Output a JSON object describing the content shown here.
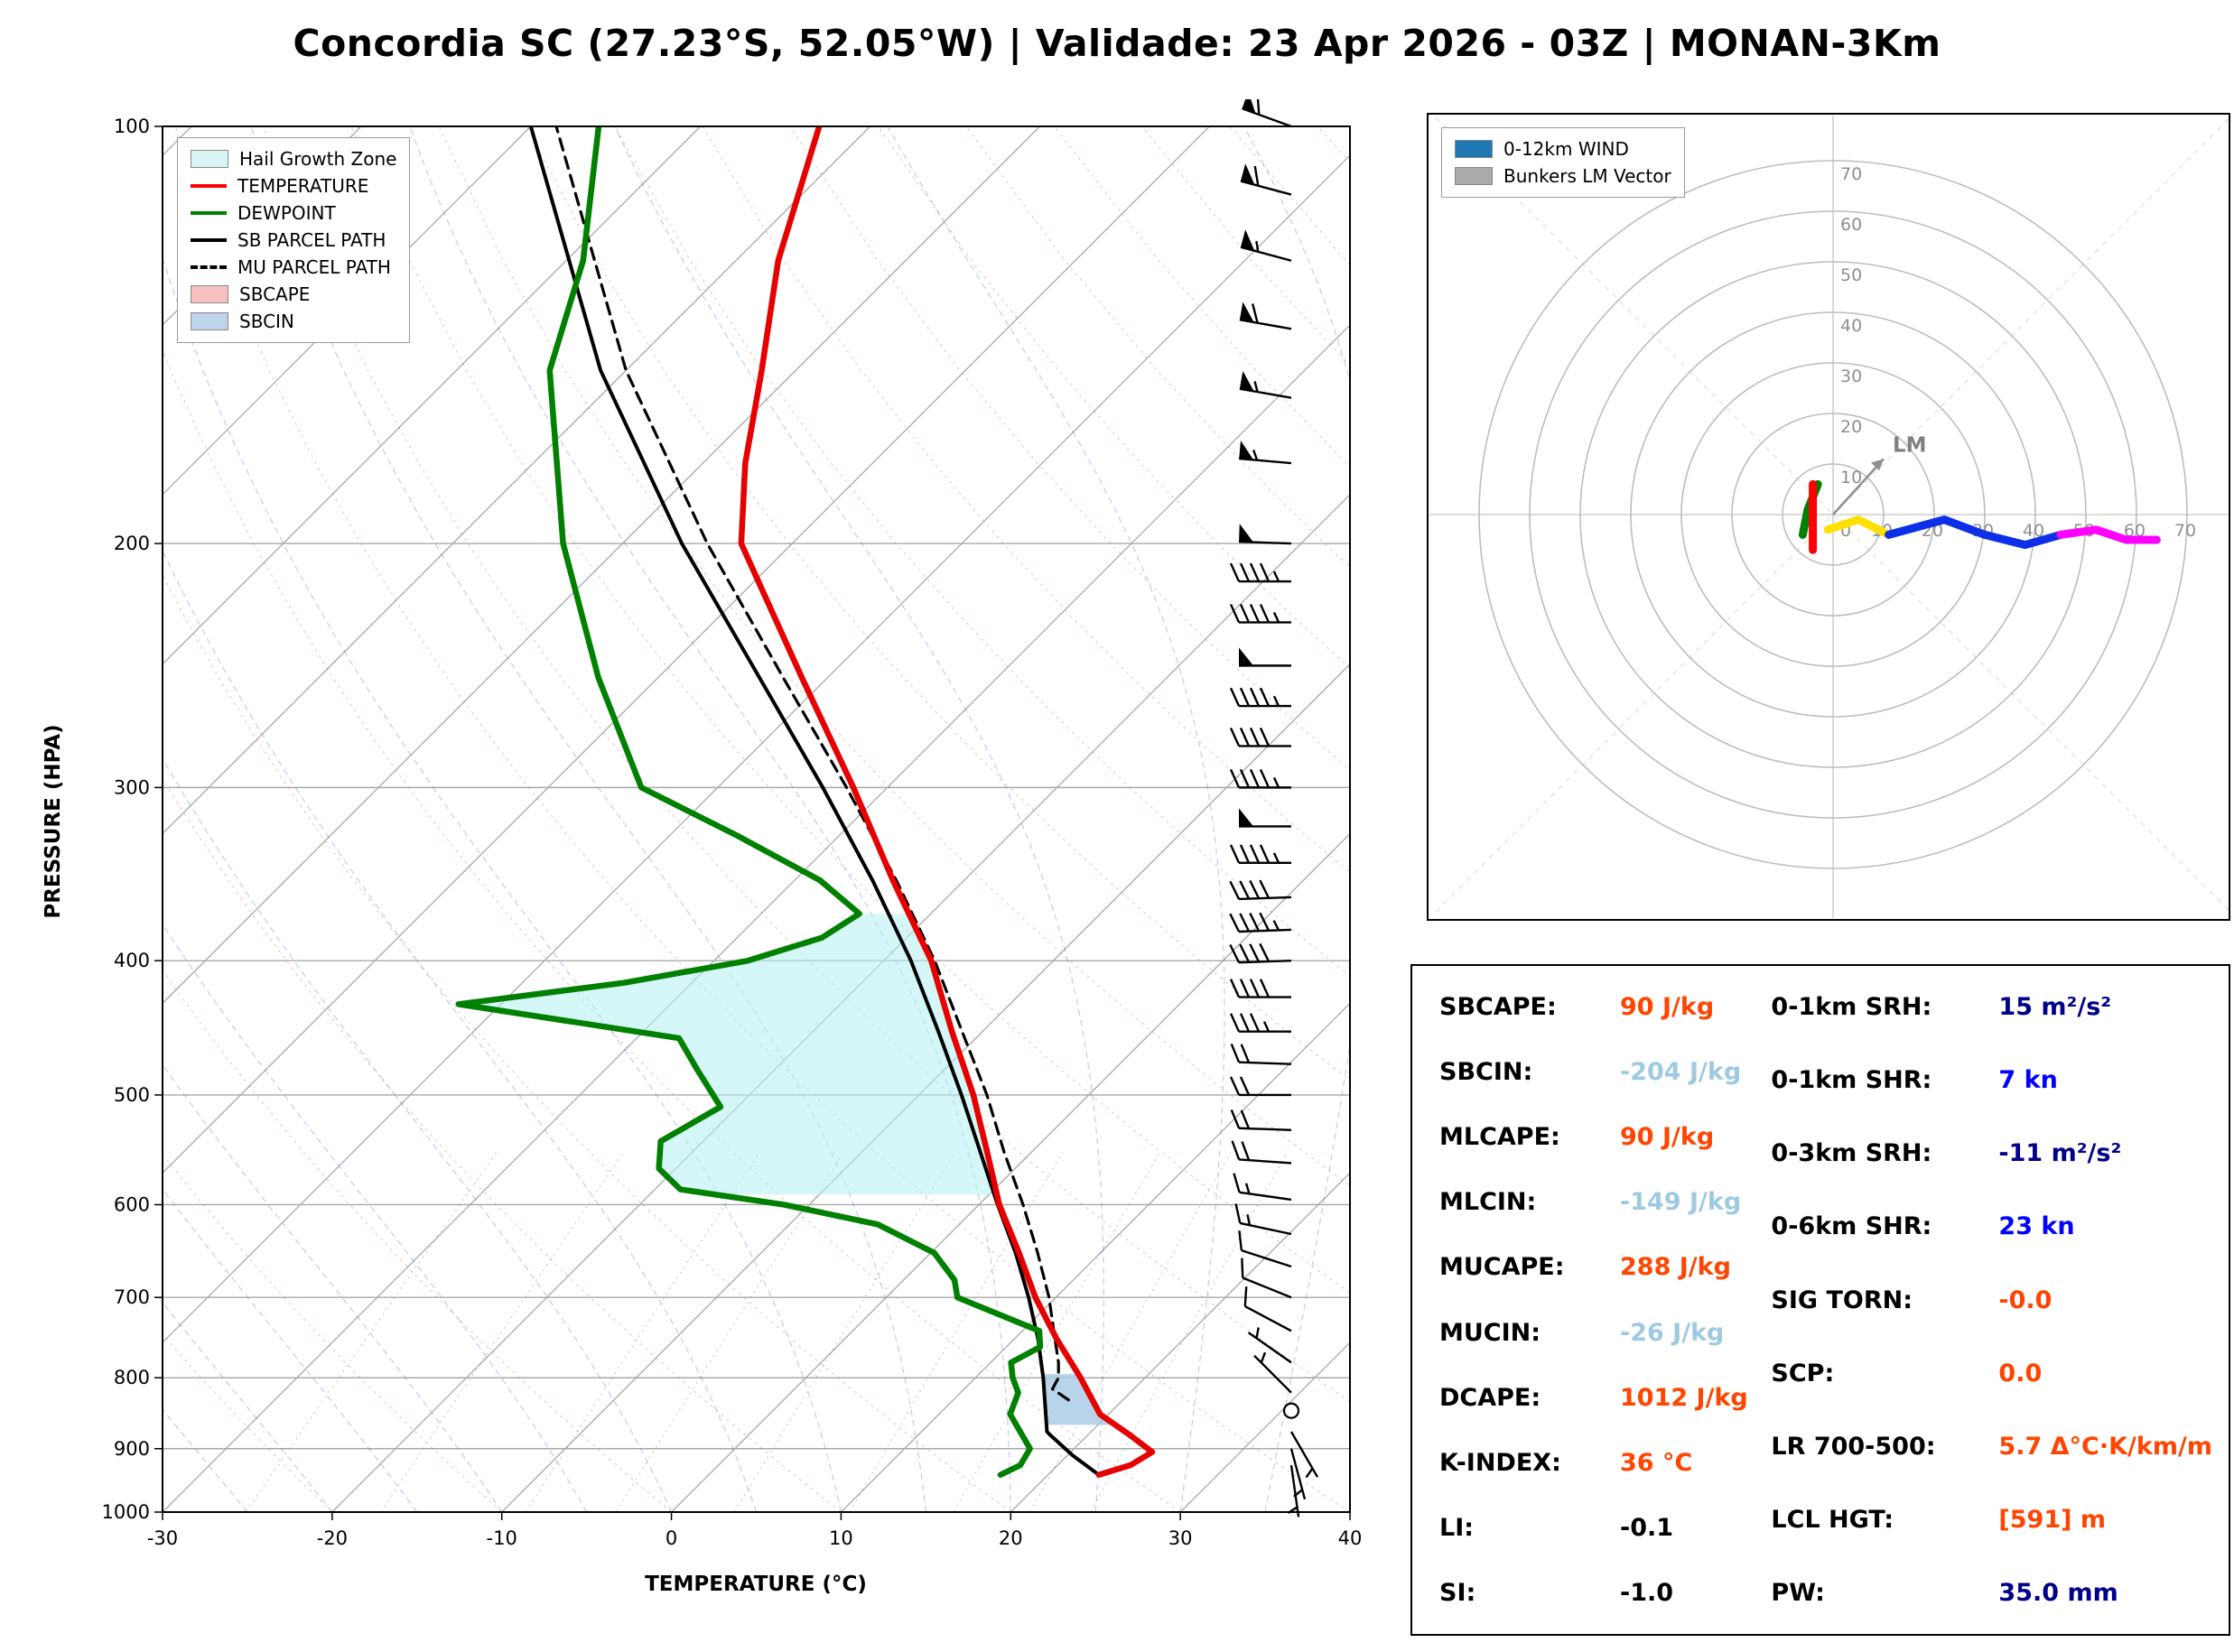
{
  "title": "Concordia SC (27.23°S, 52.05°W) | Validade: 23 Apr 2026 - 03Z | MONAN-3Km",
  "chart_data": [
    {
      "type": "skewt",
      "xlabel": "TEMPERATURE (°C)",
      "ylabel": "PRESSURE (HPA)",
      "x_range": [
        -30,
        40
      ],
      "pressure_range": [
        100,
        1000
      ],
      "pressure_ticks": [
        100,
        200,
        300,
        400,
        500,
        600,
        700,
        800,
        900,
        1000
      ],
      "temp_ticks": [
        -30,
        -20,
        -10,
        0,
        10,
        20,
        30,
        40
      ],
      "legend": [
        {
          "swatch": "patch",
          "color": "#d9f4f4",
          "label": "Hail Growth Zone"
        },
        {
          "swatch": "line",
          "color": "#ff0000",
          "label": "TEMPERATURE"
        },
        {
          "swatch": "line",
          "color": "#008000",
          "label": "DEWPOINT"
        },
        {
          "swatch": "line",
          "color": "#000000",
          "label": "SB PARCEL PATH"
        },
        {
          "swatch": "dash",
          "color": "#000000",
          "label": "MU PARCEL PATH"
        },
        {
          "swatch": "patch",
          "color": "#f6c0c0",
          "label": "SBCAPE"
        },
        {
          "swatch": "patch",
          "color": "#bdd4ea",
          "label": "SBCIN"
        }
      ],
      "temperature": [
        [
          940,
          23.0
        ],
        [
          925,
          24.3
        ],
        [
          905,
          24.8
        ],
        [
          880,
          22.5
        ],
        [
          850,
          19.5
        ],
        [
          800,
          16.2
        ],
        [
          750,
          12.5
        ],
        [
          700,
          8.8
        ],
        [
          650,
          5.2
        ],
        [
          600,
          1.2
        ],
        [
          550,
          -2.6
        ],
        [
          500,
          -6.8
        ],
        [
          450,
          -11.8
        ],
        [
          400,
          -17.2
        ],
        [
          350,
          -24.2
        ],
        [
          300,
          -32.0
        ],
        [
          250,
          -41.5
        ],
        [
          200,
          -53.0
        ],
        [
          175,
          -57.5
        ],
        [
          150,
          -62.0
        ],
        [
          125,
          -67.5
        ],
        [
          100,
          -73.0
        ]
      ],
      "dewpoint": [
        [
          940,
          17.2
        ],
        [
          925,
          17.8
        ],
        [
          900,
          17.4
        ],
        [
          850,
          14.2
        ],
        [
          820,
          13.4
        ],
        [
          800,
          12.2
        ],
        [
          780,
          11.2
        ],
        [
          760,
          12.0
        ],
        [
          740,
          11.0
        ],
        [
          700,
          4.2
        ],
        [
          680,
          3.0
        ],
        [
          650,
          0.2
        ],
        [
          620,
          -4.8
        ],
        [
          600,
          -11.5
        ],
        [
          585,
          -18.5
        ],
        [
          565,
          -21.0
        ],
        [
          540,
          -22.5
        ],
        [
          510,
          -21.0
        ],
        [
          480,
          -24.5
        ],
        [
          455,
          -27.5
        ],
        [
          430,
          -42.5
        ],
        [
          415,
          -34.0
        ],
        [
          400,
          -28.0
        ],
        [
          385,
          -25.0
        ],
        [
          370,
          -24.2
        ],
        [
          350,
          -28.5
        ],
        [
          325,
          -36.0
        ],
        [
          300,
          -44.5
        ],
        [
          250,
          -53.5
        ],
        [
          200,
          -63.5
        ],
        [
          150,
          -74.5
        ],
        [
          125,
          -79.0
        ],
        [
          100,
          -86.0
        ]
      ],
      "sb_parcel": [
        [
          940,
          23.0
        ],
        [
          910,
          20.3
        ],
        [
          880,
          17.8
        ],
        [
          875,
          17.4
        ],
        [
          850,
          16.3
        ],
        [
          800,
          14.0
        ],
        [
          750,
          11.4
        ],
        [
          700,
          8.4
        ],
        [
          650,
          5.0
        ],
        [
          600,
          1.1
        ],
        [
          550,
          -3.0
        ],
        [
          500,
          -7.5
        ],
        [
          450,
          -12.6
        ],
        [
          400,
          -18.4
        ],
        [
          350,
          -25.4
        ],
        [
          300,
          -33.8
        ],
        [
          250,
          -44.0
        ],
        [
          200,
          -56.5
        ],
        [
          150,
          -71.5
        ],
        [
          100,
          -90.0
        ]
      ],
      "mu_parcel": [
        [
          830,
          16.8
        ],
        [
          815,
          15.2
        ],
        [
          800,
          14.9
        ],
        [
          780,
          14.0
        ],
        [
          750,
          12.4
        ],
        [
          700,
          9.6
        ],
        [
          650,
          6.3
        ],
        [
          600,
          2.6
        ],
        [
          550,
          -1.6
        ],
        [
          500,
          -6.0
        ],
        [
          450,
          -11.2
        ],
        [
          400,
          -17.0
        ],
        [
          350,
          -24.0
        ],
        [
          300,
          -32.4
        ],
        [
          250,
          -42.6
        ],
        [
          200,
          -55.0
        ],
        [
          150,
          -70.0
        ],
        [
          100,
          -88.5
        ]
      ],
      "shading": {
        "hail_growth_zone": {
          "color": "rgba(178,240,240,0.55)",
          "p_bottom": 590,
          "p_top": 370
        },
        "sbcin": {
          "color": "rgba(170,205,230,0.85)",
          "p_bottom": 865,
          "p_top": 795
        }
      },
      "winds": [
        [
          100,
          290,
          60
        ],
        [
          112,
          285,
          60
        ],
        [
          125,
          285,
          55
        ],
        [
          140,
          280,
          60
        ],
        [
          157,
          280,
          55
        ],
        [
          175,
          275,
          55
        ],
        [
          200,
          272,
          50
        ],
        [
          213,
          270,
          45
        ],
        [
          228,
          270,
          45
        ],
        [
          245,
          270,
          50
        ],
        [
          262,
          270,
          45
        ],
        [
          280,
          270,
          40
        ],
        [
          300,
          270,
          45
        ],
        [
          320,
          270,
          50
        ],
        [
          340,
          270,
          45
        ],
        [
          360,
          268,
          40
        ],
        [
          380,
          268,
          45
        ],
        [
          400,
          268,
          40
        ],
        [
          425,
          270,
          40
        ],
        [
          450,
          270,
          35
        ],
        [
          475,
          272,
          20
        ],
        [
          500,
          270,
          18
        ],
        [
          530,
          272,
          20
        ],
        [
          560,
          274,
          18
        ],
        [
          595,
          278,
          15
        ],
        [
          630,
          282,
          15
        ],
        [
          665,
          288,
          12
        ],
        [
          700,
          292,
          10
        ],
        [
          740,
          298,
          8
        ],
        [
          780,
          305,
          6
        ],
        [
          820,
          315,
          4
        ],
        [
          845,
          0,
          0
        ],
        [
          875,
          150,
          3
        ],
        [
          900,
          165,
          5
        ],
        [
          925,
          172,
          5
        ]
      ]
    },
    {
      "type": "hodograph",
      "ring_interval": 10,
      "ring_max": 70,
      "ring_labels": [
        10,
        20,
        30,
        40,
        50,
        60,
        70
      ],
      "origin_label": "0",
      "legend": [
        {
          "swatch": "patch",
          "color": "#1f77b4",
          "label": "0-12km WIND"
        },
        {
          "swatch": "patch",
          "color": "#aaaaaa",
          "label": "Bunkers LM Vector"
        }
      ],
      "segments": [
        {
          "color": "#008000",
          "points": [
            [
              -3,
              6
            ],
            [
              -5,
              1
            ],
            [
              -6,
              -4
            ]
          ]
        },
        {
          "color": "#ff0000",
          "points": [
            [
              -4,
              6
            ],
            [
              -4,
              -7
            ]
          ]
        },
        {
          "color": "#ffe000",
          "points": [
            [
              -1,
              -3
            ],
            [
              5,
              -1
            ],
            [
              11,
              -4
            ]
          ]
        },
        {
          "color": "#0d2fe8",
          "points": [
            [
              11,
              -4
            ],
            [
              22,
              -1
            ],
            [
              30,
              -4
            ],
            [
              38,
              -6
            ],
            [
              45,
              -4
            ]
          ]
        },
        {
          "color": "#ff00ff",
          "points": [
            [
              45,
              -4
            ],
            [
              52,
              -3
            ],
            [
              58,
              -5
            ],
            [
              64,
              -5
            ]
          ]
        }
      ],
      "lm_vector": {
        "u": 10,
        "v": 11,
        "label": "LM"
      }
    }
  ],
  "indices": {
    "left": [
      {
        "label": "SBCAPE:",
        "value": "90 J/kg",
        "color": "#ff4500"
      },
      {
        "label": "SBCIN:",
        "value": "-204 J/kg",
        "color": "#9ecae1"
      },
      {
        "label": "MLCAPE:",
        "value": "90 J/kg",
        "color": "#ff4500"
      },
      {
        "label": "MLCIN:",
        "value": "-149 J/kg",
        "color": "#9ecae1"
      },
      {
        "label": "MUCAPE:",
        "value": "288 J/kg",
        "color": "#ff4500"
      },
      {
        "label": "MUCIN:",
        "value": "-26 J/kg",
        "color": "#9ecae1"
      },
      {
        "label": "DCAPE:",
        "value": "1012 J/kg",
        "color": "#ff4500"
      },
      {
        "label": "K-INDEX:",
        "value": "36 °C",
        "color": "#ff4500"
      },
      {
        "label": "LI:",
        "value": "-0.1",
        "color": "#000000"
      },
      {
        "label": "SI:",
        "value": "-1.0",
        "color": "#000000"
      }
    ],
    "right": [
      {
        "label": "0-1km SRH:",
        "value": "15 m²/s²",
        "color": "#00008b"
      },
      {
        "label": "0-1km SHR:",
        "value": "7 kn",
        "color": "#0000ff"
      },
      {
        "label": "0-3km SRH:",
        "value": "-11 m²/s²",
        "color": "#00008b"
      },
      {
        "label": "0-6km SHR:",
        "value": "23 kn",
        "color": "#0000ff"
      },
      {
        "label": "SIG TORN:",
        "value": "-0.0",
        "color": "#ff4500"
      },
      {
        "label": "SCP:",
        "value": "0.0",
        "color": "#ff4500"
      },
      {
        "label": "LR 700-500:",
        "value": "5.7 Δ°C·K/km/m",
        "color": "#ff4500"
      },
      {
        "label": "LCL HGT:",
        "value": "[591] m",
        "color": "#ff4500"
      },
      {
        "label": "PW:",
        "value": "35.0 mm",
        "color": "#00008b"
      }
    ]
  }
}
